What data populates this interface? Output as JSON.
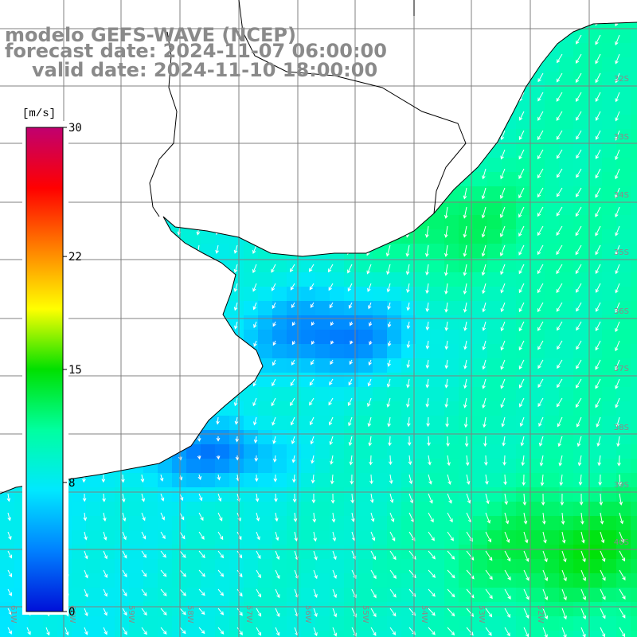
{
  "title": {
    "line1": "modelo GEFS-WAVE (NCEP)",
    "line2": "forecast date: 2024-11-07 06:00:00",
    "line3": "valid date: 2024-11-10 18:00:00"
  },
  "colorbar": {
    "unit": "[m/s]",
    "ticks": [
      "30",
      "22",
      "15",
      "8",
      "0"
    ],
    "tick_values": [
      30,
      22,
      15,
      8,
      0
    ],
    "min": 0,
    "max": 30,
    "colors": [
      "#0010d8",
      "#0080ff",
      "#00e8ff",
      "#00ffa0",
      "#00e000",
      "#ffff00",
      "#ff8000",
      "#ff0000",
      "#c00070"
    ]
  },
  "map": {
    "lat_labels": [
      "32S",
      "33S",
      "34S",
      "35S",
      "36S",
      "37S",
      "38S",
      "39S",
      "40S"
    ],
    "lon_labels": [
      "61W",
      "60W",
      "59W",
      "58W",
      "57W",
      "56W",
      "55W",
      "54W",
      "53W",
      "52W"
    ],
    "field": "wind speed",
    "colors": {
      "land": "#ffffff",
      "coast": "#000000",
      "grid": "#808080",
      "vectors": "#ffffff",
      "labels": "#8a8a8a"
    }
  }
}
